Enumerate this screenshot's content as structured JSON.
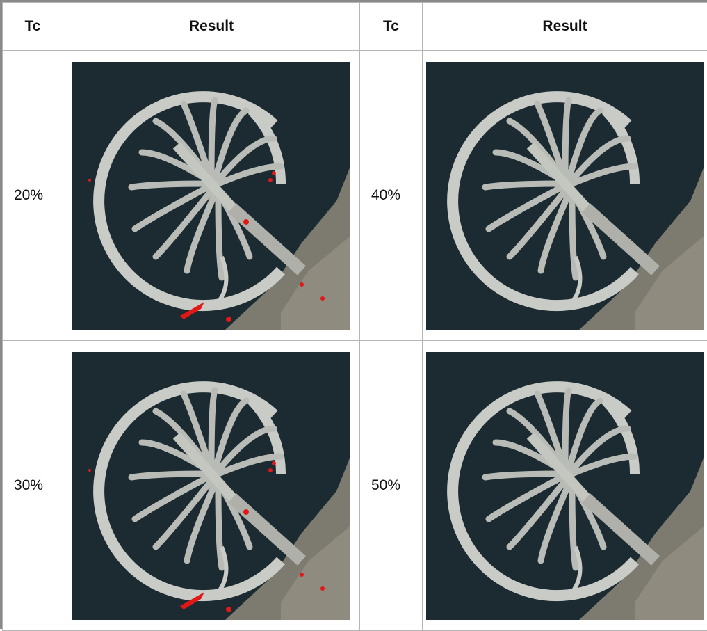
{
  "table": {
    "header": [
      "Tc",
      "Result",
      "Tc",
      "Result"
    ],
    "rows": [
      [
        "20%",
        "40%"
      ],
      [
        "30%",
        "50%"
      ]
    ]
  }
}
